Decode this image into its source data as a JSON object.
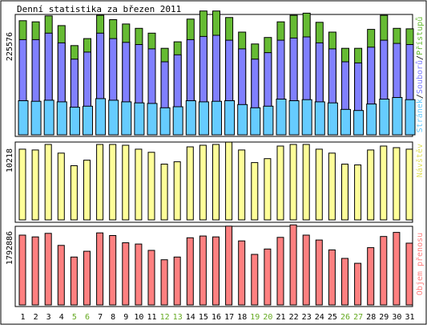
{
  "chart_data": [
    {
      "type": "bar",
      "title": "Denní statistika za březen 2011",
      "ymax_label": "225576",
      "legend_label_blue": "Stránek",
      "legend_sep1": "/",
      "legend_label_purple": "Souborů",
      "legend_sep2": "/",
      "legend_label_green": "Přístupů",
      "colors": {
        "pages": "#66ccff",
        "files": "#8080ff",
        "hits": "#66bb33"
      },
      "ylim": [
        0,
        225576
      ],
      "categories": [
        "1",
        "2",
        "3",
        "4",
        "5",
        "6",
        "7",
        "8",
        "9",
        "10",
        "11",
        "12",
        "13",
        "14",
        "15",
        "16",
        "17",
        "18",
        "19",
        "20",
        "21",
        "22",
        "23",
        "24",
        "25",
        "26",
        "27",
        "28",
        "29",
        "30",
        "31"
      ],
      "weekend_days": [
        "5",
        "6",
        "12",
        "13",
        "19",
        "20",
        "26",
        "27"
      ],
      "series": [
        {
          "name": "Přístupů",
          "values": [
            211000,
            209000,
            220000,
            202000,
            165000,
            178000,
            221000,
            213000,
            205000,
            197000,
            188000,
            160000,
            172000,
            214000,
            229000,
            229000,
            217000,
            190000,
            168000,
            180000,
            209000,
            221000,
            225000,
            208000,
            190000,
            160000,
            160000,
            195000,
            221000,
            197000,
            196000
          ]
        },
        {
          "name": "Souborů",
          "values": [
            176000,
            176000,
            188000,
            170000,
            140000,
            153000,
            188000,
            178000,
            171000,
            167000,
            159000,
            135000,
            148000,
            176000,
            182000,
            184000,
            175000,
            159000,
            140000,
            152000,
            175000,
            179000,
            181000,
            170000,
            159000,
            135000,
            133000,
            162000,
            175000,
            169000,
            167000
          ]
        },
        {
          "name": "Stránek",
          "values": [
            63000,
            62000,
            64000,
            61000,
            51000,
            53000,
            67000,
            64000,
            61000,
            59000,
            58000,
            50000,
            52000,
            63000,
            61000,
            62000,
            63000,
            56000,
            50000,
            53000,
            66000,
            63000,
            65000,
            61000,
            59000,
            47000,
            45000,
            57000,
            66000,
            69000,
            65000
          ]
        }
      ]
    },
    {
      "type": "bar",
      "ymax_label": "10218",
      "legend_label": "Návštěv",
      "color": "#ffff99",
      "ylim": [
        0,
        10218
      ],
      "categories": [
        "1",
        "2",
        "3",
        "4",
        "5",
        "6",
        "7",
        "8",
        "9",
        "10",
        "11",
        "12",
        "13",
        "14",
        "15",
        "16",
        "17",
        "18",
        "19",
        "20",
        "21",
        "22",
        "23",
        "24",
        "25",
        "26",
        "27",
        "28",
        "29",
        "30",
        "31"
      ],
      "series": [
        {
          "name": "Návštěv",
          "values": [
            9000,
            8900,
            9600,
            8500,
            6900,
            7600,
            9600,
            9600,
            9500,
            9000,
            8600,
            7100,
            7400,
            9300,
            9500,
            9600,
            9900,
            8900,
            7300,
            7800,
            9400,
            9600,
            9600,
            9000,
            8500,
            7100,
            7000,
            8900,
            9400,
            9200,
            9000
          ]
        }
      ]
    },
    {
      "type": "bar",
      "ymax_label": "1792886",
      "legend_label": "Objem přenosu",
      "color": "#ff8080",
      "ylim": [
        0,
        1792886
      ],
      "categories": [
        "1",
        "2",
        "3",
        "4",
        "5",
        "6",
        "7",
        "8",
        "9",
        "10",
        "11",
        "12",
        "13",
        "14",
        "15",
        "16",
        "17",
        "18",
        "19",
        "20",
        "21",
        "22",
        "23",
        "24",
        "25",
        "26",
        "27",
        "28",
        "29",
        "30",
        "31"
      ],
      "series": [
        {
          "name": "Objem přenosu",
          "values": [
            1560000,
            1520000,
            1600000,
            1330000,
            1070000,
            1200000,
            1610000,
            1550000,
            1390000,
            1360000,
            1220000,
            1010000,
            1070000,
            1500000,
            1540000,
            1520000,
            1760000,
            1430000,
            1130000,
            1250000,
            1510000,
            1790000,
            1560000,
            1450000,
            1230000,
            1040000,
            930000,
            1280000,
            1530000,
            1620000,
            1380000
          ]
        }
      ]
    }
  ]
}
